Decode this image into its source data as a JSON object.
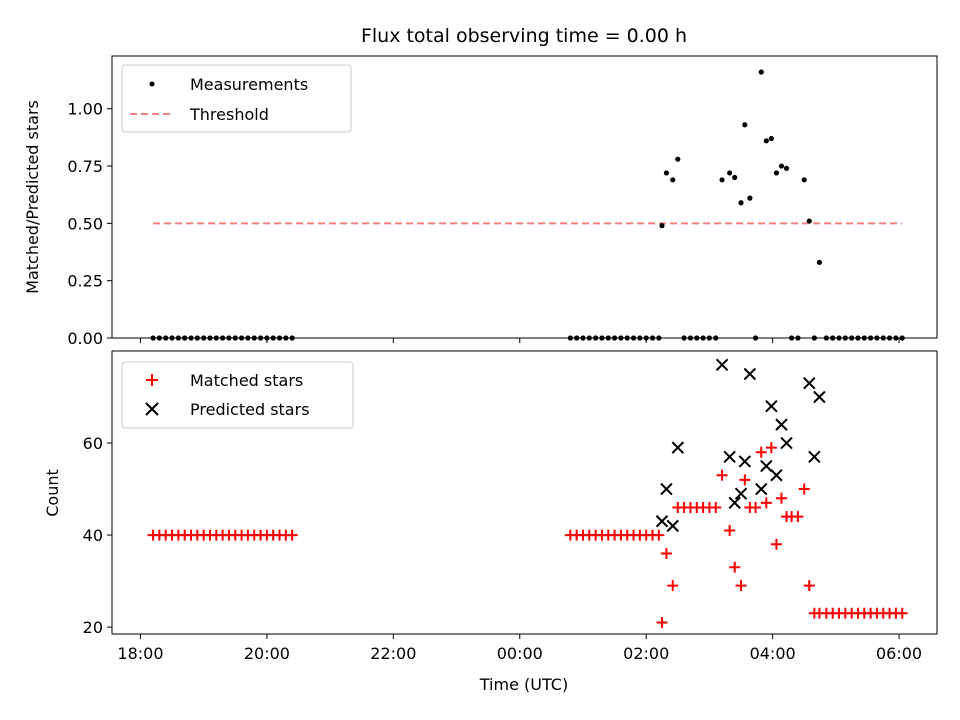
{
  "chart_data": [
    {
      "type": "scatter",
      "title": "Flux total observing time = 0.00 h",
      "xlabel": "",
      "ylabel": "Matched/Predicted stars",
      "xlim": [
        17.55,
        30.6
      ],
      "ylim": [
        0,
        1.23
      ],
      "yticks": [
        0,
        0.25,
        0.5,
        0.75,
        1.0
      ],
      "ytick_labels": [
        "0.00",
        "0.25",
        "0.50",
        "0.75",
        "1.00"
      ],
      "legend": {
        "position": "upper-left",
        "entries": [
          "Measurements",
          "Threshold"
        ]
      },
      "series": [
        {
          "name": "Measurements",
          "kind": "scatter",
          "color": "#000000",
          "x": [
            18.2,
            18.3,
            18.4,
            18.5,
            18.6,
            18.7,
            18.8,
            18.9,
            19.0,
            19.1,
            19.2,
            19.3,
            19.4,
            19.5,
            19.6,
            19.7,
            19.8,
            19.9,
            20.0,
            20.1,
            20.2,
            20.3,
            20.4,
            24.8,
            24.9,
            25.0,
            25.1,
            25.2,
            25.3,
            25.4,
            25.5,
            25.6,
            25.7,
            25.8,
            25.9,
            26.0,
            26.1,
            26.2,
            26.25,
            26.32,
            26.42,
            26.5,
            26.6,
            26.7,
            26.8,
            26.9,
            27.0,
            27.1,
            27.2,
            27.32,
            27.4,
            27.5,
            27.56,
            27.64,
            27.73,
            27.82,
            27.9,
            27.98,
            28.06,
            28.14,
            28.22,
            28.3,
            28.4,
            28.5,
            28.58,
            28.66,
            28.74,
            28.85,
            28.95,
            29.05,
            29.15,
            29.25,
            29.35,
            29.45,
            29.55,
            29.65,
            29.75,
            29.85,
            29.95,
            30.05
          ],
          "y": [
            0,
            0,
            0,
            0,
            0,
            0,
            0,
            0,
            0,
            0,
            0,
            0,
            0,
            0,
            0,
            0,
            0,
            0,
            0,
            0,
            0,
            0,
            0,
            0,
            0,
            0,
            0,
            0,
            0,
            0,
            0,
            0,
            0,
            0,
            0,
            0,
            0,
            0,
            0.49,
            0.72,
            0.69,
            0.78,
            0,
            0,
            0,
            0,
            0,
            0,
            0.69,
            0.72,
            0.7,
            0.59,
            0.93,
            0.61,
            0,
            1.16,
            0.86,
            0.87,
            0.72,
            0.75,
            0.74,
            0,
            0,
            0.69,
            0.51,
            0,
            0.33,
            0,
            0,
            0,
            0,
            0,
            0,
            0,
            0,
            0,
            0,
            0,
            0,
            0
          ]
        },
        {
          "name": "Threshold",
          "kind": "dashed-line",
          "color": "#f08080",
          "x": [
            18.2,
            30.05
          ],
          "y": [
            0.5,
            0.5
          ]
        }
      ]
    },
    {
      "type": "scatter",
      "title": "",
      "xlabel": "Time (UTC)",
      "ylabel": "Count",
      "xlim": [
        17.55,
        30.6
      ],
      "ylim": [
        18.5,
        80
      ],
      "yticks": [
        20,
        40,
        60
      ],
      "ytick_labels": [
        "20",
        "40",
        "60"
      ],
      "xticks": [
        18,
        20,
        22,
        24,
        26,
        28,
        30
      ],
      "xtick_labels": [
        "18:00",
        "20:00",
        "22:00",
        "00:00",
        "02:00",
        "04:00",
        "06:00"
      ],
      "legend": {
        "position": "upper-left",
        "entries": [
          "Matched stars",
          "Predicted stars"
        ]
      },
      "series": [
        {
          "name": "Matched stars",
          "kind": "plus",
          "color": "#ff0000",
          "x": [
            18.2,
            18.3,
            18.4,
            18.5,
            18.6,
            18.7,
            18.8,
            18.9,
            19.0,
            19.1,
            19.2,
            19.3,
            19.4,
            19.5,
            19.6,
            19.7,
            19.8,
            19.9,
            20.0,
            20.1,
            20.2,
            20.3,
            20.4,
            24.8,
            24.9,
            25.0,
            25.1,
            25.2,
            25.3,
            25.4,
            25.5,
            25.6,
            25.7,
            25.8,
            25.9,
            26.0,
            26.1,
            26.2,
            26.25,
            26.32,
            26.42,
            26.5,
            26.6,
            26.7,
            26.8,
            26.9,
            27.0,
            27.1,
            27.2,
            27.32,
            27.4,
            27.5,
            27.56,
            27.64,
            27.73,
            27.82,
            27.9,
            27.98,
            28.06,
            28.14,
            28.22,
            28.3,
            28.4,
            28.5,
            28.58,
            28.66,
            28.74,
            28.85,
            28.95,
            29.05,
            29.15,
            29.25,
            29.35,
            29.45,
            29.55,
            29.65,
            29.75,
            29.85,
            29.95,
            30.05
          ],
          "y": [
            40,
            40,
            40,
            40,
            40,
            40,
            40,
            40,
            40,
            40,
            40,
            40,
            40,
            40,
            40,
            40,
            40,
            40,
            40,
            40,
            40,
            40,
            40,
            40,
            40,
            40,
            40,
            40,
            40,
            40,
            40,
            40,
            40,
            40,
            40,
            40,
            40,
            40,
            21,
            36,
            29,
            46,
            46,
            46,
            46,
            46,
            46,
            46,
            53,
            41,
            33,
            29,
            52,
            46,
            46,
            58,
            47,
            59,
            38,
            48,
            44,
            44,
            44,
            50,
            29,
            23,
            23,
            23,
            23,
            23,
            23,
            23,
            23,
            23,
            23,
            23,
            23,
            23,
            23,
            23
          ]
        },
        {
          "name": "Predicted stars",
          "kind": "x",
          "color": "#000000",
          "x": [
            26.25,
            26.32,
            26.42,
            26.5,
            27.2,
            27.32,
            27.4,
            27.5,
            27.56,
            27.64,
            27.82,
            27.9,
            27.98,
            28.06,
            28.14,
            28.22,
            28.58,
            28.66,
            28.74
          ],
          "y": [
            43,
            50,
            42,
            59,
            77,
            57,
            47,
            49,
            56,
            75,
            50,
            55,
            68,
            53,
            64,
            60,
            73,
            57,
            70
          ]
        }
      ]
    }
  ]
}
